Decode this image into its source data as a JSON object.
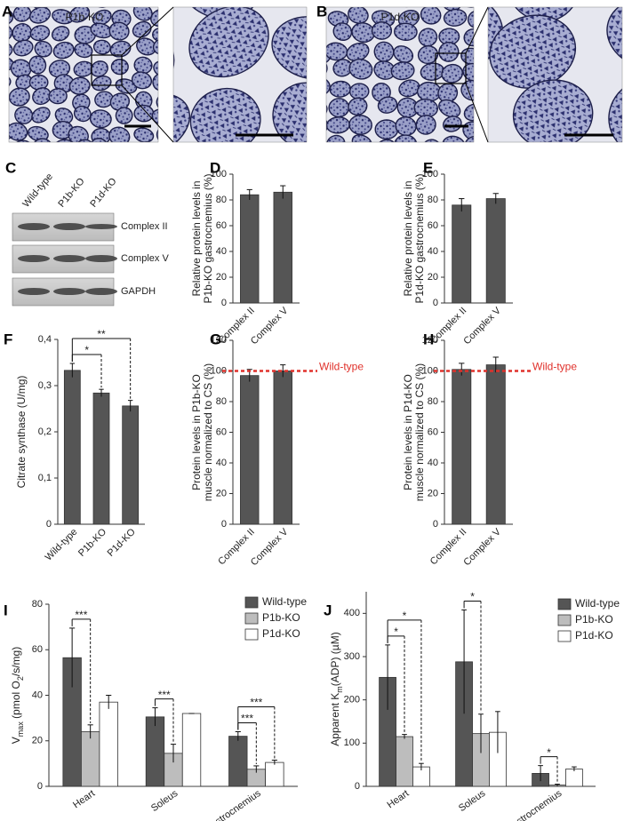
{
  "panel_a": {
    "letter": "A",
    "label": "P1b-KO"
  },
  "panel_b": {
    "letter": "B",
    "label": "P1d-KO"
  },
  "panel_c": {
    "letter": "C",
    "lanes": [
      "Wild-type",
      "P1b-KO",
      "P1d-KO"
    ],
    "rows": [
      "Complex II",
      "Complex V",
      "GAPDH"
    ]
  },
  "chart_data": [
    {
      "type": "bar",
      "panel": "D",
      "ylabel": [
        "Relative protein levels in",
        "P1b-KO gastrocnemius (%)"
      ],
      "categories": [
        "Complex II",
        "Complex V"
      ],
      "values": [
        84,
        86
      ],
      "errors": [
        4,
        5
      ],
      "color": "#555555",
      "ylim": [
        0,
        100
      ],
      "yticks": [
        0,
        20,
        40,
        60,
        80,
        100
      ]
    },
    {
      "type": "bar",
      "panel": "E",
      "ylabel": [
        "Relative protein levels in",
        "P1d-KO gastrocnemius (%)"
      ],
      "categories": [
        "Complex II",
        "Complex V"
      ],
      "values": [
        76,
        81
      ],
      "errors": [
        5,
        4
      ],
      "color": "#555555",
      "ylim": [
        0,
        100
      ],
      "yticks": [
        0,
        20,
        40,
        60,
        80,
        100
      ]
    },
    {
      "type": "bar",
      "panel": "F",
      "ylabel": [
        "Citrate synthase (U/mg)"
      ],
      "categories": [
        "Wild-type",
        "P1b-KO",
        "P1d-KO"
      ],
      "values": [
        0.333,
        0.284,
        0.256
      ],
      "errors": [
        0.015,
        0.008,
        0.012
      ],
      "color": "#555555",
      "ylim": [
        0,
        0.4
      ],
      "yticks": [
        0,
        {
          "value": 0.1,
          "label": "0,1"
        },
        {
          "value": 0.2,
          "label": "0,2"
        },
        {
          "value": 0.3,
          "label": "0,3"
        },
        {
          "value": 0.4,
          "label": "0,4"
        }
      ],
      "significance": [
        {
          "from": "Wild-type",
          "to": "P1b-KO",
          "label": "*"
        },
        {
          "from": "Wild-type",
          "to": "P1d-KO",
          "label": "**"
        }
      ]
    },
    {
      "type": "bar",
      "panel": "G",
      "ylabel": [
        "Protein levels in P1b-KO",
        "muscle normalized to CS (%)"
      ],
      "categories": [
        "Complex II",
        "Complex V"
      ],
      "values": [
        97,
        100
      ],
      "errors": [
        4,
        4
      ],
      "color": "#555555",
      "ylim": [
        0,
        120
      ],
      "yticks": [
        0,
        20,
        40,
        60,
        80,
        100,
        120
      ],
      "reference": {
        "value": 100,
        "label": "Wild-type",
        "color": "#e0312b"
      }
    },
    {
      "type": "bar",
      "panel": "H",
      "ylabel": [
        "Protein levels in  P1d-KO",
        "muscle normalized to CS (%)"
      ],
      "categories": [
        "Complex II",
        "Complex V"
      ],
      "values": [
        101,
        104
      ],
      "errors": [
        4,
        5
      ],
      "color": "#555555",
      "ylim": [
        0,
        120
      ],
      "yticks": [
        0,
        20,
        40,
        60,
        80,
        100,
        120
      ],
      "reference": {
        "value": 100,
        "label": "Wild-type",
        "color": "#e0312b"
      }
    },
    {
      "type": "bar",
      "panel": "I",
      "ylabel": [
        [
          {
            "text": "V"
          },
          {
            "text": "max",
            "sub": true
          },
          {
            "text": " (pmol O"
          },
          {
            "text": "2",
            "sub": true
          },
          {
            "text": "/s/mg)"
          }
        ]
      ],
      "categories": [
        "Heart",
        "Soleus",
        "Gastrocnemius"
      ],
      "series": [
        {
          "name": "Wild-type",
          "color": "#555555",
          "values": [
            56.5,
            30.5,
            22
          ],
          "errors": [
            13,
            4,
            2
          ]
        },
        {
          "name": "P1b-KO",
          "color": "#bdbdbd",
          "values": [
            24,
            14.5,
            7.5
          ],
          "errors": [
            3,
            4,
            1.5
          ]
        },
        {
          "name": "P1d-KO",
          "color": "#ffffff",
          "values": [
            37,
            32,
            10.5
          ],
          "errors": [
            3,
            0,
            1
          ]
        }
      ],
      "ylim": [
        0,
        80
      ],
      "yticks": [
        0,
        20,
        40,
        60,
        80
      ],
      "significance": [
        {
          "category": "Heart",
          "from": "Wild-type",
          "to": "P1b-KO",
          "label": "***"
        },
        {
          "category": "Soleus",
          "from": "Wild-type",
          "to": "P1b-KO",
          "label": "***"
        },
        {
          "category": "Gastrocnemius",
          "from": "Wild-type",
          "to": "P1b-KO",
          "label": "***"
        },
        {
          "category": "Gastrocnemius",
          "from": "Wild-type",
          "to": "P1d-KO",
          "label": "***"
        }
      ]
    },
    {
      "type": "bar",
      "panel": "J",
      "ylabel": [
        [
          {
            "text": "Apparent K"
          },
          {
            "text": "m",
            "sub": true
          },
          {
            "text": "(ADP) (µM)"
          }
        ]
      ],
      "categories": [
        "Heart",
        "Soleus",
        "Gastrocnemius"
      ],
      "series": [
        {
          "name": "Wild-type",
          "color": "#555555",
          "values": [
            252,
            288,
            30
          ],
          "errors": [
            75,
            120,
            18
          ]
        },
        {
          "name": "P1b-KO",
          "color": "#bdbdbd",
          "values": [
            115,
            122,
            3
          ],
          "errors": [
            5,
            45,
            2
          ]
        },
        {
          "name": "P1d-KO",
          "color": "#ffffff",
          "values": [
            45,
            125,
            40
          ],
          "errors": [
            8,
            48,
            5
          ]
        }
      ],
      "ylim": [
        0,
        450
      ],
      "yticks": [
        0,
        100,
        200,
        300,
        400
      ],
      "significance": [
        {
          "category": "Heart",
          "from": "Wild-type",
          "to": "P1b-KO",
          "label": "*"
        },
        {
          "category": "Heart",
          "from": "Wild-type",
          "to": "P1d-KO",
          "label": "*"
        },
        {
          "category": "Soleus",
          "from": "Wild-type",
          "to": "P1b-KO",
          "label": "*"
        },
        {
          "category": "Gastrocnemius",
          "from": "Wild-type",
          "to": "P1b-KO",
          "label": "*"
        }
      ]
    }
  ]
}
